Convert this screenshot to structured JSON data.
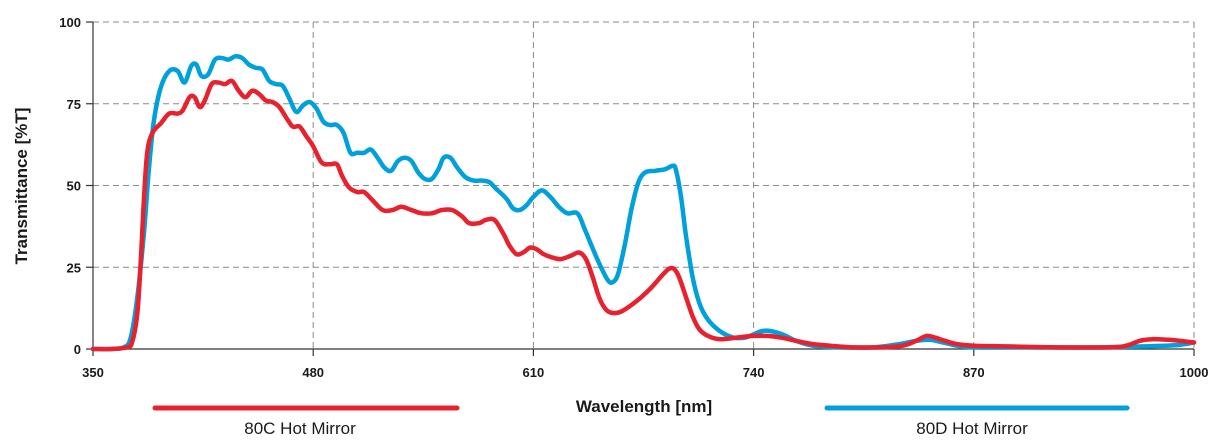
{
  "chart_data": {
    "type": "line",
    "title": "",
    "xlabel": "Wavelength [nm]",
    "ylabel": "Transmittance [%T]",
    "xlim": [
      350,
      1000
    ],
    "ylim": [
      0,
      100
    ],
    "x_ticks": [
      350,
      480,
      610,
      740,
      870,
      1000
    ],
    "y_ticks": [
      0,
      25,
      50,
      75,
      100
    ],
    "x_tick_labels": [
      "350",
      "480",
      "610",
      "740",
      "870",
      "1000"
    ],
    "y_tick_labels": [
      "0",
      "25",
      "50",
      "75",
      "100"
    ],
    "grid": true,
    "legend_position": "bottom",
    "series": [
      {
        "name": "80C Hot Mirror",
        "color": "#e8212e",
        "points": [
          [
            350,
            0
          ],
          [
            360,
            0
          ],
          [
            370,
            0.5
          ],
          [
            373,
            2
          ],
          [
            376,
            10
          ],
          [
            378,
            25
          ],
          [
            380,
            45
          ],
          [
            382,
            60
          ],
          [
            385,
            66
          ],
          [
            390,
            69
          ],
          [
            395,
            72
          ],
          [
            400,
            72
          ],
          [
            403,
            73
          ],
          [
            407,
            77
          ],
          [
            410,
            77
          ],
          [
            413,
            74
          ],
          [
            416,
            76
          ],
          [
            420,
            81
          ],
          [
            424,
            81.5
          ],
          [
            428,
            81
          ],
          [
            432,
            82
          ],
          [
            436,
            79
          ],
          [
            440,
            77
          ],
          [
            444,
            79
          ],
          [
            448,
            78
          ],
          [
            452,
            76
          ],
          [
            456,
            75.5
          ],
          [
            460,
            74
          ],
          [
            465,
            70
          ],
          [
            468,
            68
          ],
          [
            472,
            68
          ],
          [
            476,
            65
          ],
          [
            480,
            62
          ],
          [
            485,
            57
          ],
          [
            490,
            56.5
          ],
          [
            494,
            56.5
          ],
          [
            497,
            53
          ],
          [
            501,
            49.5
          ],
          [
            506,
            48
          ],
          [
            510,
            48
          ],
          [
            515,
            45.5
          ],
          [
            521,
            42.5
          ],
          [
            527,
            42.5
          ],
          [
            532,
            43.5
          ],
          [
            538,
            42.5
          ],
          [
            544,
            41.5
          ],
          [
            550,
            41.5
          ],
          [
            556,
            42.5
          ],
          [
            562,
            42.5
          ],
          [
            568,
            40.5
          ],
          [
            572,
            38.5
          ],
          [
            578,
            38.5
          ],
          [
            582,
            39.5
          ],
          [
            587,
            39.5
          ],
          [
            592,
            35.5
          ],
          [
            596,
            31.5
          ],
          [
            600,
            29
          ],
          [
            604,
            29.5
          ],
          [
            608,
            31
          ],
          [
            612,
            30.5
          ],
          [
            616,
            29
          ],
          [
            621,
            28
          ],
          [
            626,
            27.5
          ],
          [
            632,
            28.5
          ],
          [
            637,
            29.5
          ],
          [
            641,
            27.5
          ],
          [
            645,
            22
          ],
          [
            649,
            15.5
          ],
          [
            653,
            12
          ],
          [
            657,
            11
          ],
          [
            662,
            11.5
          ],
          [
            668,
            13.5
          ],
          [
            674,
            16
          ],
          [
            680,
            19
          ],
          [
            686,
            22.5
          ],
          [
            690,
            24.5
          ],
          [
            693,
            24.5
          ],
          [
            696,
            22
          ],
          [
            700,
            16
          ],
          [
            704,
            10
          ],
          [
            708,
            6
          ],
          [
            713,
            4
          ],
          [
            720,
            3
          ],
          [
            730,
            3.5
          ],
          [
            740,
            4
          ],
          [
            748,
            4
          ],
          [
            756,
            3.5
          ],
          [
            765,
            2.5
          ],
          [
            775,
            1.5
          ],
          [
            785,
            1
          ],
          [
            800,
            0.5
          ],
          [
            815,
            0.5
          ],
          [
            828,
            1
          ],
          [
            836,
            2.5
          ],
          [
            842,
            4
          ],
          [
            847,
            3.5
          ],
          [
            853,
            2.5
          ],
          [
            860,
            1.5
          ],
          [
            870,
            1
          ],
          [
            890,
            0.8
          ],
          [
            920,
            0.5
          ],
          [
            950,
            0.5
          ],
          [
            960,
            1
          ],
          [
            968,
            2.5
          ],
          [
            975,
            3
          ],
          [
            985,
            2.8
          ],
          [
            995,
            2.3
          ],
          [
            1000,
            2
          ]
        ]
      },
      {
        "name": "80D Hot Mirror",
        "color": "#00a0dc",
        "points": [
          [
            350,
            0
          ],
          [
            362,
            0
          ],
          [
            368,
            0.5
          ],
          [
            372,
            3
          ],
          [
            376,
            15
          ],
          [
            380,
            35
          ],
          [
            383,
            55
          ],
          [
            386,
            70
          ],
          [
            390,
            80
          ],
          [
            395,
            85
          ],
          [
            400,
            85
          ],
          [
            404,
            81.5
          ],
          [
            408,
            86.5
          ],
          [
            411,
            87
          ],
          [
            414,
            83.5
          ],
          [
            418,
            84
          ],
          [
            422,
            88.5
          ],
          [
            426,
            89
          ],
          [
            430,
            88.5
          ],
          [
            434,
            89.5
          ],
          [
            438,
            89
          ],
          [
            442,
            87
          ],
          [
            446,
            86
          ],
          [
            450,
            85.5
          ],
          [
            454,
            82
          ],
          [
            458,
            81
          ],
          [
            462,
            80.5
          ],
          [
            466,
            76.5
          ],
          [
            470,
            72.5
          ],
          [
            474,
            74.5
          ],
          [
            478,
            75.5
          ],
          [
            482,
            73.5
          ],
          [
            486,
            69.5
          ],
          [
            490,
            68.5
          ],
          [
            494,
            68.5
          ],
          [
            498,
            66
          ],
          [
            502,
            60
          ],
          [
            506,
            60
          ],
          [
            510,
            60
          ],
          [
            514,
            61
          ],
          [
            518,
            58.5
          ],
          [
            522,
            55.5
          ],
          [
            526,
            54.5
          ],
          [
            530,
            57.5
          ],
          [
            534,
            58.5
          ],
          [
            538,
            57.5
          ],
          [
            542,
            54
          ],
          [
            546,
            52
          ],
          [
            550,
            52
          ],
          [
            554,
            55
          ],
          [
            557,
            58.5
          ],
          [
            561,
            58.5
          ],
          [
            565,
            55.5
          ],
          [
            570,
            52.5
          ],
          [
            575,
            51.5
          ],
          [
            580,
            51.5
          ],
          [
            584,
            51
          ],
          [
            588,
            49
          ],
          [
            594,
            46
          ],
          [
            598,
            43
          ],
          [
            602,
            42.5
          ],
          [
            606,
            44
          ],
          [
            610,
            46.5
          ],
          [
            615,
            48.5
          ],
          [
            620,
            46.5
          ],
          [
            625,
            43.5
          ],
          [
            630,
            41.5
          ],
          [
            636,
            41.5
          ],
          [
            640,
            37
          ],
          [
            644,
            32
          ],
          [
            649,
            26
          ],
          [
            654,
            21
          ],
          [
            657,
            20.5
          ],
          [
            660,
            23
          ],
          [
            664,
            32
          ],
          [
            668,
            43
          ],
          [
            672,
            51
          ],
          [
            676,
            54
          ],
          [
            682,
            54.5
          ],
          [
            688,
            55
          ],
          [
            692,
            56
          ],
          [
            694,
            55
          ],
          [
            697,
            47
          ],
          [
            700,
            35
          ],
          [
            704,
            22
          ],
          [
            708,
            14
          ],
          [
            713,
            9
          ],
          [
            720,
            5.5
          ],
          [
            728,
            3.5
          ],
          [
            735,
            3.5
          ],
          [
            740,
            4.5
          ],
          [
            745,
            5.5
          ],
          [
            750,
            5.5
          ],
          [
            757,
            4.5
          ],
          [
            765,
            2.5
          ],
          [
            775,
            1
          ],
          [
            790,
            0.5
          ],
          [
            810,
            0.5
          ],
          [
            826,
            1.5
          ],
          [
            836,
            2.5
          ],
          [
            844,
            2.8
          ],
          [
            852,
            2
          ],
          [
            860,
            1
          ],
          [
            870,
            0.5
          ],
          [
            900,
            0.5
          ],
          [
            940,
            0.5
          ],
          [
            970,
            0.8
          ],
          [
            990,
            1.2
          ],
          [
            1000,
            2
          ]
        ]
      }
    ]
  }
}
